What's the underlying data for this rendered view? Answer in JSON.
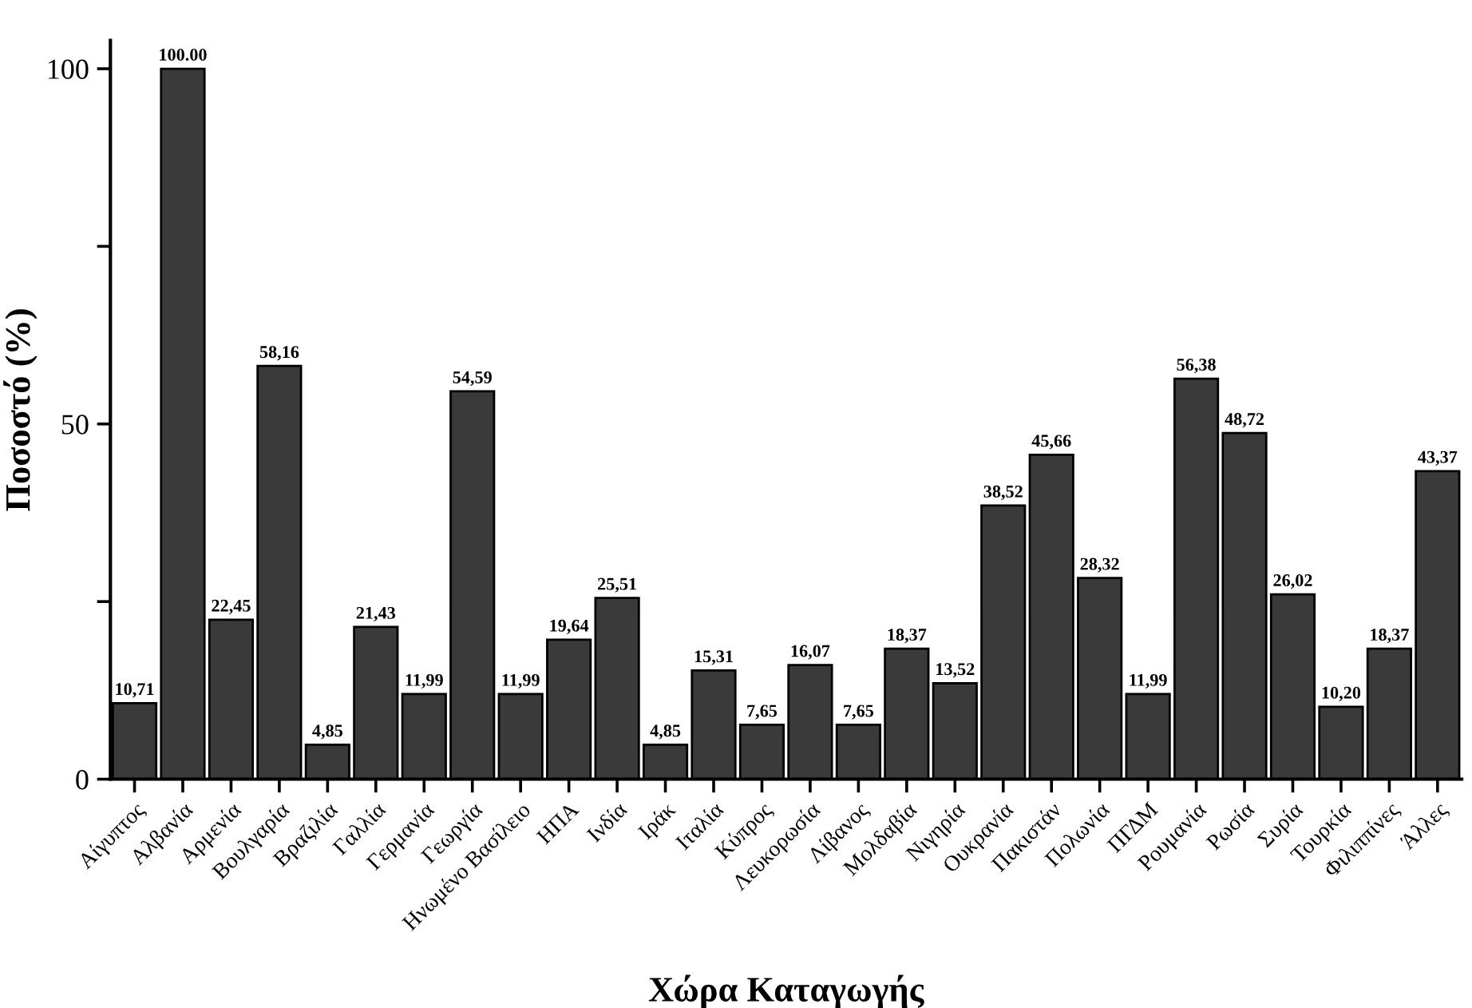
{
  "chart_data": {
    "type": "bar",
    "xlabel": "Χώρα Καταγωγής",
    "ylabel": "Ποσοστό (%)",
    "categories": [
      "Αίγυπτος",
      "Αλβανία",
      "Αρμενία",
      "Βουλγαρία",
      "Βραζιλία",
      "Γαλλία",
      "Γερμανία",
      "Γεωργία",
      "Ηνωμένο Βασίλειο",
      "ΗΠΑ",
      "Ινδία",
      "Ιράκ",
      "Ιταλία",
      "Κύπρος",
      "Λευκορωσία",
      "Λίβανος",
      "Μολδαβία",
      "Νιγηρία",
      "Ουκρανία",
      "Πακιστάν",
      "Πολωνία",
      "ΠΓΔΜ",
      "Ρουμανία",
      "Ρωσία",
      "Συρία",
      "Τουρκία",
      "Φιλιππίνες",
      "Άλλες"
    ],
    "values": [
      10.71,
      100.0,
      22.45,
      58.16,
      4.85,
      21.43,
      11.99,
      54.59,
      11.99,
      19.64,
      25.51,
      4.85,
      15.31,
      7.65,
      16.07,
      7.65,
      18.37,
      13.52,
      38.52,
      45.66,
      28.32,
      11.99,
      56.38,
      48.72,
      26.02,
      10.2,
      18.37,
      43.37
    ],
    "value_labels": [
      "10,71",
      "100.00",
      "22,45",
      "58,16",
      "4,85",
      "21,43",
      "11,99",
      "54,59",
      "11,99",
      "19,64",
      "25,51",
      "4,85",
      "15,31",
      "7,65",
      "16,07",
      "7,65",
      "18,37",
      "13,52",
      "38,52",
      "45,66",
      "28,32",
      "11,99",
      "56,38",
      "48,72",
      "26,02",
      "10,20",
      "18,37",
      "43,37"
    ],
    "color": "#3a3a3a",
    "ylim": [
      0,
      104
    ],
    "yticks": [
      0,
      {
        "value": 25,
        "label": null
      },
      50,
      {
        "value": 75,
        "label": null
      },
      100
    ],
    "grid": false
  }
}
